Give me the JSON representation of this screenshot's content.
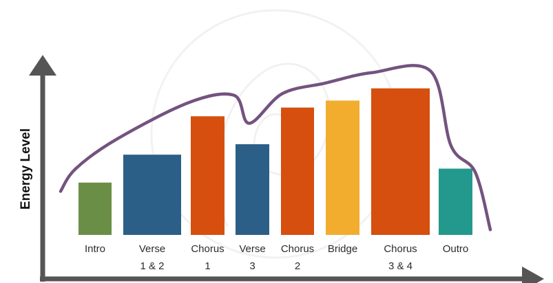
{
  "chart_data": {
    "type": "bar",
    "ylabel": "Energy Level",
    "xlabel": "",
    "ylim": [
      0,
      10
    ],
    "grid": false,
    "legend": "none",
    "categories": [
      {
        "line1": "Intro",
        "line2": ""
      },
      {
        "line1": "Verse",
        "line2": "1 & 2"
      },
      {
        "line1": "Chorus",
        "line2": "1"
      },
      {
        "line1": "Verse",
        "line2": "3"
      },
      {
        "line1": "Chorus",
        "line2": "2"
      },
      {
        "line1": "Bridge",
        "line2": ""
      },
      {
        "line1": "Chorus",
        "line2": "3 & 4"
      },
      {
        "line1": "Outro",
        "line2": ""
      }
    ],
    "values": [
      3.0,
      4.6,
      6.8,
      5.2,
      7.3,
      7.7,
      8.4,
      3.8
    ],
    "bar_colors": [
      "#6b8e47",
      "#2b5f87",
      "#d64f0f",
      "#2b5f87",
      "#d64f0f",
      "#f2ad2f",
      "#d64f0f",
      "#22998c"
    ],
    "energy_curve": {
      "color": "#74537f",
      "values": [
        2.5,
        3.8,
        5.5,
        7.6,
        8.0,
        6.4,
        8.1,
        8.7,
        9.3,
        9.4,
        5.1,
        3.6,
        0.3
      ]
    },
    "axis_color": "#555555"
  }
}
